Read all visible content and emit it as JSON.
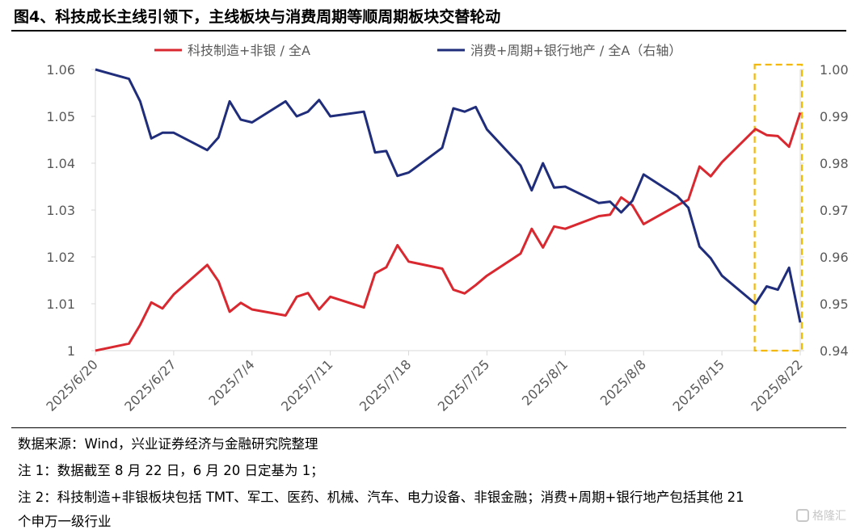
{
  "title": "图4、科技成长主线引领下，主线板块与消费周期等顺周期板块交替轮动",
  "notes": {
    "source": "数据来源：Wind，兴业证券经济与金融研究院整理",
    "note1": "注 1：数据截至 8 月 22 日，6 月 20 日定基为 1；",
    "note2": "注 2：科技制造+非银板块包括 TMT、军工、医药、机械、汽车、电力设备、非银金融；消费+周期+银行地产包括其他 21",
    "note2_cont": "个申万一级行业"
  },
  "watermark": {
    "text": "格隆汇",
    "icon": "gelonghui-logo-icon"
  },
  "colors": {
    "series1": "#d9282f",
    "series2": "#1f2d7b",
    "highlight": "#f5b800",
    "axis": "#d9d9d9",
    "text": "#595959"
  },
  "chart_data": {
    "type": "line",
    "xlabel": "",
    "ylabel": "",
    "x_start": "2025-06-20",
    "x_end": "2025-08-22",
    "x_ticks": [
      "2025/6/20",
      "2025/6/27",
      "2025/7/4",
      "2025/7/11",
      "2025/7/18",
      "2025/7/25",
      "2025/8/1",
      "2025/8/8",
      "2025/8/15",
      "2025/8/22"
    ],
    "left_axis": {
      "ylim": [
        1.0,
        1.06
      ],
      "ticks": [
        1,
        1.01,
        1.02,
        1.03,
        1.04,
        1.05,
        1.06
      ],
      "tick_labels": [
        "1",
        "1.01",
        "1.02",
        "1.03",
        "1.04",
        "1.05",
        "1.06"
      ]
    },
    "right_axis": {
      "ylim": [
        0.94,
        1.0
      ],
      "ticks": [
        0.94,
        0.95,
        0.96,
        0.97,
        0.98,
        0.99,
        1.0
      ],
      "tick_labels": [
        "0.94",
        "0.95",
        "0.96",
        "0.97",
        "0.98",
        "0.99",
        "1.00"
      ]
    },
    "legend": {
      "placement": "top"
    },
    "highlight_box": {
      "x_from": "2025-08-18",
      "x_to": "2025-08-22"
    },
    "series": [
      {
        "name": "科技制造+非银 / 全A",
        "axis": "left",
        "points": [
          [
            "2025-06-20",
            1.0
          ],
          [
            "2025-06-23",
            1.0015
          ],
          [
            "2025-06-24",
            1.0055
          ],
          [
            "2025-06-25",
            1.0103
          ],
          [
            "2025-06-26",
            1.009
          ],
          [
            "2025-06-27",
            1.012
          ],
          [
            "2025-06-30",
            1.0183
          ],
          [
            "2025-07-01",
            1.0148
          ],
          [
            "2025-07-02",
            1.0083
          ],
          [
            "2025-07-03",
            1.0102
          ],
          [
            "2025-07-04",
            1.0088
          ],
          [
            "2025-07-07",
            1.0075
          ],
          [
            "2025-07-08",
            1.0115
          ],
          [
            "2025-07-09",
            1.0123
          ],
          [
            "2025-07-10",
            1.0088
          ],
          [
            "2025-07-11",
            1.0115
          ],
          [
            "2025-07-14",
            1.0092
          ],
          [
            "2025-07-15",
            1.0165
          ],
          [
            "2025-07-16",
            1.0178
          ],
          [
            "2025-07-17",
            1.0225
          ],
          [
            "2025-07-18",
            1.019
          ],
          [
            "2025-07-21",
            1.0175
          ],
          [
            "2025-07-22",
            1.013
          ],
          [
            "2025-07-23",
            1.0122
          ],
          [
            "2025-07-24",
            1.014
          ],
          [
            "2025-07-25",
            1.016
          ],
          [
            "2025-07-28",
            1.0207
          ],
          [
            "2025-07-29",
            1.026
          ],
          [
            "2025-07-30",
            1.022
          ],
          [
            "2025-07-31",
            1.0265
          ],
          [
            "2025-08-01",
            1.026
          ],
          [
            "2025-08-04",
            1.0287
          ],
          [
            "2025-08-05",
            1.029
          ],
          [
            "2025-08-06",
            1.0327
          ],
          [
            "2025-08-07",
            1.031
          ],
          [
            "2025-08-08",
            1.027
          ],
          [
            "2025-08-11",
            1.031
          ],
          [
            "2025-08-12",
            1.0322
          ],
          [
            "2025-08-13",
            1.0393
          ],
          [
            "2025-08-14",
            1.0372
          ],
          [
            "2025-08-15",
            1.0402
          ],
          [
            "2025-08-18",
            1.0473
          ],
          [
            "2025-08-19",
            1.046
          ],
          [
            "2025-08-20",
            1.0458
          ],
          [
            "2025-08-21",
            1.0435
          ],
          [
            "2025-08-22",
            1.0508
          ]
        ]
      },
      {
        "name": "消费+周期+银行地产 / 全A（右轴）",
        "axis": "right",
        "points": [
          [
            "2025-06-20",
            1.0
          ],
          [
            "2025-06-23",
            0.998
          ],
          [
            "2025-06-24",
            0.9932
          ],
          [
            "2025-06-25",
            0.9853
          ],
          [
            "2025-06-26",
            0.9865
          ],
          [
            "2025-06-27",
            0.9865
          ],
          [
            "2025-06-30",
            0.9828
          ],
          [
            "2025-07-01",
            0.9855
          ],
          [
            "2025-07-02",
            0.9932
          ],
          [
            "2025-07-03",
            0.9893
          ],
          [
            "2025-07-04",
            0.9887
          ],
          [
            "2025-07-07",
            0.9932
          ],
          [
            "2025-07-08",
            0.99
          ],
          [
            "2025-07-09",
            0.991
          ],
          [
            "2025-07-10",
            0.9935
          ],
          [
            "2025-07-11",
            0.99
          ],
          [
            "2025-07-14",
            0.991
          ],
          [
            "2025-07-15",
            0.9823
          ],
          [
            "2025-07-16",
            0.9826
          ],
          [
            "2025-07-17",
            0.9773
          ],
          [
            "2025-07-18",
            0.978
          ],
          [
            "2025-07-21",
            0.9833
          ],
          [
            "2025-07-22",
            0.9917
          ],
          [
            "2025-07-23",
            0.991
          ],
          [
            "2025-07-24",
            0.992
          ],
          [
            "2025-07-25",
            0.9872
          ],
          [
            "2025-07-28",
            0.9795
          ],
          [
            "2025-07-29",
            0.9742
          ],
          [
            "2025-07-30",
            0.98
          ],
          [
            "2025-07-31",
            0.9748
          ],
          [
            "2025-08-01",
            0.975
          ],
          [
            "2025-08-04",
            0.9715
          ],
          [
            "2025-08-05",
            0.9718
          ],
          [
            "2025-08-06",
            0.9695
          ],
          [
            "2025-08-07",
            0.972
          ],
          [
            "2025-08-08",
            0.9776
          ],
          [
            "2025-08-11",
            0.973
          ],
          [
            "2025-08-12",
            0.9705
          ],
          [
            "2025-08-13",
            0.9622
          ],
          [
            "2025-08-14",
            0.9597
          ],
          [
            "2025-08-15",
            0.956
          ],
          [
            "2025-08-18",
            0.95
          ],
          [
            "2025-08-19",
            0.9537
          ],
          [
            "2025-08-20",
            0.953
          ],
          [
            "2025-08-21",
            0.9577
          ],
          [
            "2025-08-22",
            0.946
          ]
        ]
      }
    ]
  }
}
